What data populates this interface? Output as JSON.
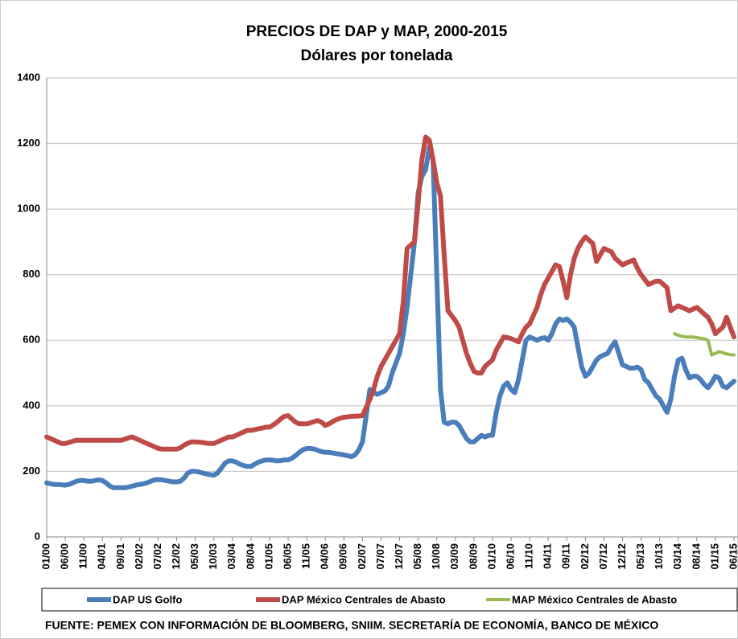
{
  "chart_data": {
    "type": "line",
    "title": "PRECIOS DE DAP y MAP, 2000-2015",
    "subtitle": "Dólares por tonelada",
    "source": "FUENTE: PEMEX CON INFORMACIÓN DE BLOOMBERG, SNIIM. SECRETARÍA DE ECONOMÍA, BANCO DE MÉXICO",
    "categories": [
      "01/00",
      null,
      null,
      null,
      null,
      "06/00",
      null,
      null,
      null,
      null,
      "11/00",
      null,
      null,
      null,
      null,
      "04/01",
      null,
      null,
      null,
      null,
      "09/01",
      null,
      null,
      null,
      null,
      "02/02",
      null,
      null,
      null,
      null,
      "07/02",
      null,
      null,
      null,
      null,
      "12/02",
      null,
      null,
      null,
      null,
      "05/03",
      null,
      null,
      null,
      null,
      "10/03",
      null,
      null,
      null,
      null,
      "03/04",
      null,
      null,
      null,
      null,
      "08/04",
      null,
      null,
      null,
      null,
      "01/05",
      null,
      null,
      null,
      null,
      "06/05",
      null,
      null,
      null,
      null,
      "11/05",
      null,
      null,
      null,
      null,
      "04/06",
      null,
      null,
      null,
      null,
      "09/06",
      null,
      null,
      null,
      null,
      "02/07",
      null,
      null,
      null,
      null,
      "07/07",
      null,
      null,
      null,
      null,
      "12/07",
      null,
      null,
      null,
      null,
      "05/08",
      null,
      null,
      null,
      null,
      "10/08",
      null,
      null,
      null,
      null,
      "03/09",
      null,
      null,
      null,
      null,
      "08/09",
      null,
      null,
      null,
      null,
      "01/10",
      null,
      null,
      null,
      null,
      "06/10",
      null,
      null,
      null,
      null,
      "11/10",
      null,
      null,
      null,
      null,
      "04/11",
      null,
      null,
      null,
      null,
      "09/11",
      null,
      null,
      null,
      null,
      "02/12",
      null,
      null,
      null,
      null,
      "07/12",
      null,
      null,
      null,
      null,
      "12/12",
      null,
      null,
      null,
      null,
      "05/13",
      null,
      null,
      null,
      null,
      "10/13",
      null,
      null,
      null,
      null,
      "03/14",
      null,
      null,
      null,
      null,
      "08/14",
      null,
      null,
      null,
      null,
      "01/15",
      null,
      null,
      null,
      null,
      "06/15"
    ],
    "series": [
      {
        "name": "DAP US Golfo",
        "color": "#4a7ebb",
        "values": [
          165,
          162,
          160,
          160,
          159,
          158,
          160,
          165,
          170,
          172,
          172,
          170,
          170,
          172,
          174,
          172,
          165,
          155,
          150,
          150,
          150,
          150,
          152,
          155,
          158,
          160,
          162,
          165,
          170,
          174,
          175,
          174,
          172,
          170,
          168,
          168,
          170,
          180,
          195,
          200,
          200,
          198,
          195,
          192,
          190,
          188,
          195,
          210,
          225,
          232,
          232,
          228,
          222,
          218,
          215,
          215,
          222,
          228,
          232,
          235,
          235,
          234,
          232,
          233,
          235,
          235,
          240,
          248,
          258,
          266,
          270,
          270,
          268,
          264,
          260,
          258,
          258,
          256,
          254,
          252,
          250,
          248,
          245,
          250,
          265,
          290,
          370,
          450,
          440,
          435,
          440,
          445,
          460,
          500,
          530,
          560,
          620,
          700,
          800,
          900,
          1050,
          1100,
          1120,
          1190,
          1150,
          800,
          450,
          350,
          345,
          350,
          350,
          340,
          320,
          300,
          290,
          290,
          300,
          310,
          305,
          310,
          310,
          380,
          430,
          460,
          470,
          450,
          440,
          480,
          540,
          600,
          610,
          605,
          600,
          605,
          608,
          600,
          620,
          650,
          665,
          660,
          665,
          655,
          640,
          580,
          520,
          490,
          500,
          520,
          540,
          550,
          555,
          560,
          580,
          595,
          560,
          525,
          520,
          515,
          515,
          518,
          510,
          480,
          470,
          450,
          430,
          420,
          400,
          380,
          420,
          490,
          540,
          545,
          510,
          485,
          490,
          490,
          480,
          465,
          455,
          470,
          490,
          485,
          460,
          455,
          465,
          475
        ]
      },
      {
        "name": "DAP México Centrales de Abasto",
        "color": "#be4b48",
        "values": [
          305,
          300,
          295,
          290,
          285,
          285,
          288,
          292,
          295,
          295,
          295,
          295,
          295,
          295,
          295,
          295,
          295,
          295,
          295,
          295,
          295,
          298,
          302,
          305,
          300,
          295,
          290,
          285,
          280,
          275,
          270,
          268,
          268,
          268,
          268,
          268,
          272,
          280,
          286,
          290,
          290,
          289,
          288,
          286,
          285,
          285,
          290,
          295,
          300,
          305,
          305,
          310,
          315,
          320,
          325,
          325,
          327,
          330,
          332,
          335,
          335,
          342,
          350,
          360,
          368,
          370,
          360,
          350,
          345,
          345,
          345,
          348,
          352,
          355,
          350,
          340,
          345,
          352,
          358,
          362,
          365,
          366,
          368,
          368,
          369,
          370,
          395,
          420,
          450,
          490,
          520,
          540,
          560,
          580,
          600,
          620,
          720,
          880,
          890,
          900,
          1020,
          1150,
          1220,
          1210,
          1150,
          1080,
          1040,
          860,
          690,
          675,
          660,
          640,
          600,
          560,
          530,
          505,
          500,
          500,
          520,
          530,
          540,
          570,
          590,
          610,
          608,
          605,
          600,
          595,
          620,
          640,
          650,
          675,
          700,
          740,
          770,
          790,
          810,
          830,
          825,
          780,
          730,
          800,
          850,
          880,
          900,
          915,
          905,
          895,
          840,
          860,
          880,
          875,
          870,
          850,
          840,
          830,
          835,
          840,
          845,
          820,
          800,
          785,
          770,
          775,
          780,
          780,
          770,
          760,
          690,
          698,
          705,
          700,
          695,
          690,
          695,
          700,
          690,
          680,
          670,
          650,
          620,
          630,
          640,
          670,
          640,
          610
        ]
      },
      {
        "name": "MAP México Centrales de Abasto",
        "color": "#98b954",
        "values": [
          null,
          null,
          null,
          null,
          null,
          null,
          null,
          null,
          null,
          null,
          null,
          null,
          null,
          null,
          null,
          null,
          null,
          null,
          null,
          null,
          null,
          null,
          null,
          null,
          null,
          null,
          null,
          null,
          null,
          null,
          null,
          null,
          null,
          null,
          null,
          null,
          null,
          null,
          null,
          null,
          null,
          null,
          null,
          null,
          null,
          null,
          null,
          null,
          null,
          null,
          null,
          null,
          null,
          null,
          null,
          null,
          null,
          null,
          null,
          null,
          null,
          null,
          null,
          null,
          null,
          null,
          null,
          null,
          null,
          null,
          null,
          null,
          null,
          null,
          null,
          null,
          null,
          null,
          null,
          null,
          null,
          null,
          null,
          null,
          null,
          null,
          null,
          null,
          null,
          null,
          null,
          null,
          null,
          null,
          null,
          null,
          null,
          null,
          null,
          null,
          null,
          null,
          null,
          null,
          null,
          null,
          null,
          null,
          null,
          null,
          null,
          null,
          null,
          null,
          null,
          null,
          null,
          null,
          null,
          null,
          null,
          null,
          null,
          null,
          null,
          null,
          null,
          null,
          null,
          null,
          null,
          null,
          null,
          null,
          null,
          null,
          null,
          null,
          null,
          null,
          null,
          null,
          null,
          null,
          null,
          null,
          null,
          null,
          null,
          null,
          null,
          null,
          null,
          null,
          null,
          null,
          null,
          null,
          null,
          null,
          null,
          null,
          null,
          null,
          null,
          null,
          null,
          null,
          null,
          620,
          615,
          612,
          610,
          610,
          610,
          608,
          606,
          604,
          600,
          555,
          560,
          565,
          562,
          558,
          556,
          555
        ]
      }
    ],
    "ylim": [
      0,
      1400
    ],
    "yticks": [
      0,
      200,
      400,
      600,
      800,
      1000,
      1200,
      1400
    ],
    "grid": true
  }
}
